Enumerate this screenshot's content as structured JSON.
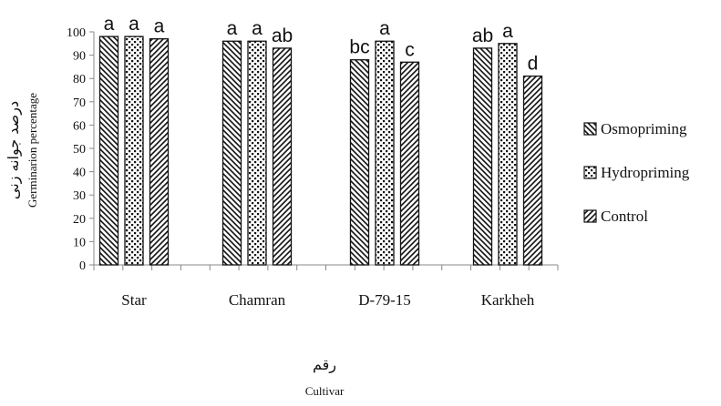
{
  "chart_data": {
    "type": "bar",
    "categories": [
      "Star",
      "Chamran",
      "D-79-15",
      "Karkheh"
    ],
    "series": [
      {
        "name": "Osmopriming",
        "pattern": "diagonal-back",
        "values": [
          98,
          96,
          88,
          93
        ],
        "letters": [
          "a",
          "a",
          "bc",
          "ab"
        ]
      },
      {
        "name": "Hydropriming",
        "pattern": "dots",
        "values": [
          98,
          96,
          96,
          95
        ],
        "letters": [
          "a",
          "a",
          "a",
          "a"
        ]
      },
      {
        "name": "Control",
        "pattern": "diagonal-forward",
        "values": [
          97,
          93,
          87,
          81
        ],
        "letters": [
          "a",
          "ab",
          "c",
          "d"
        ]
      }
    ],
    "ylim": [
      0,
      100
    ],
    "yticks": [
      0,
      10,
      20,
      30,
      40,
      50,
      60,
      70,
      80,
      90,
      100
    ],
    "ylabel_fa": "درصد جوانه زنی",
    "ylabel_en": "Germinarion percentage",
    "xlabel_fa": "رقم",
    "xlabel_en": "Cultivar",
    "legend_placement": "right",
    "grid": false,
    "colors": {
      "stroke": "#111111",
      "fill": "#ffffff",
      "text": "#111111"
    }
  }
}
